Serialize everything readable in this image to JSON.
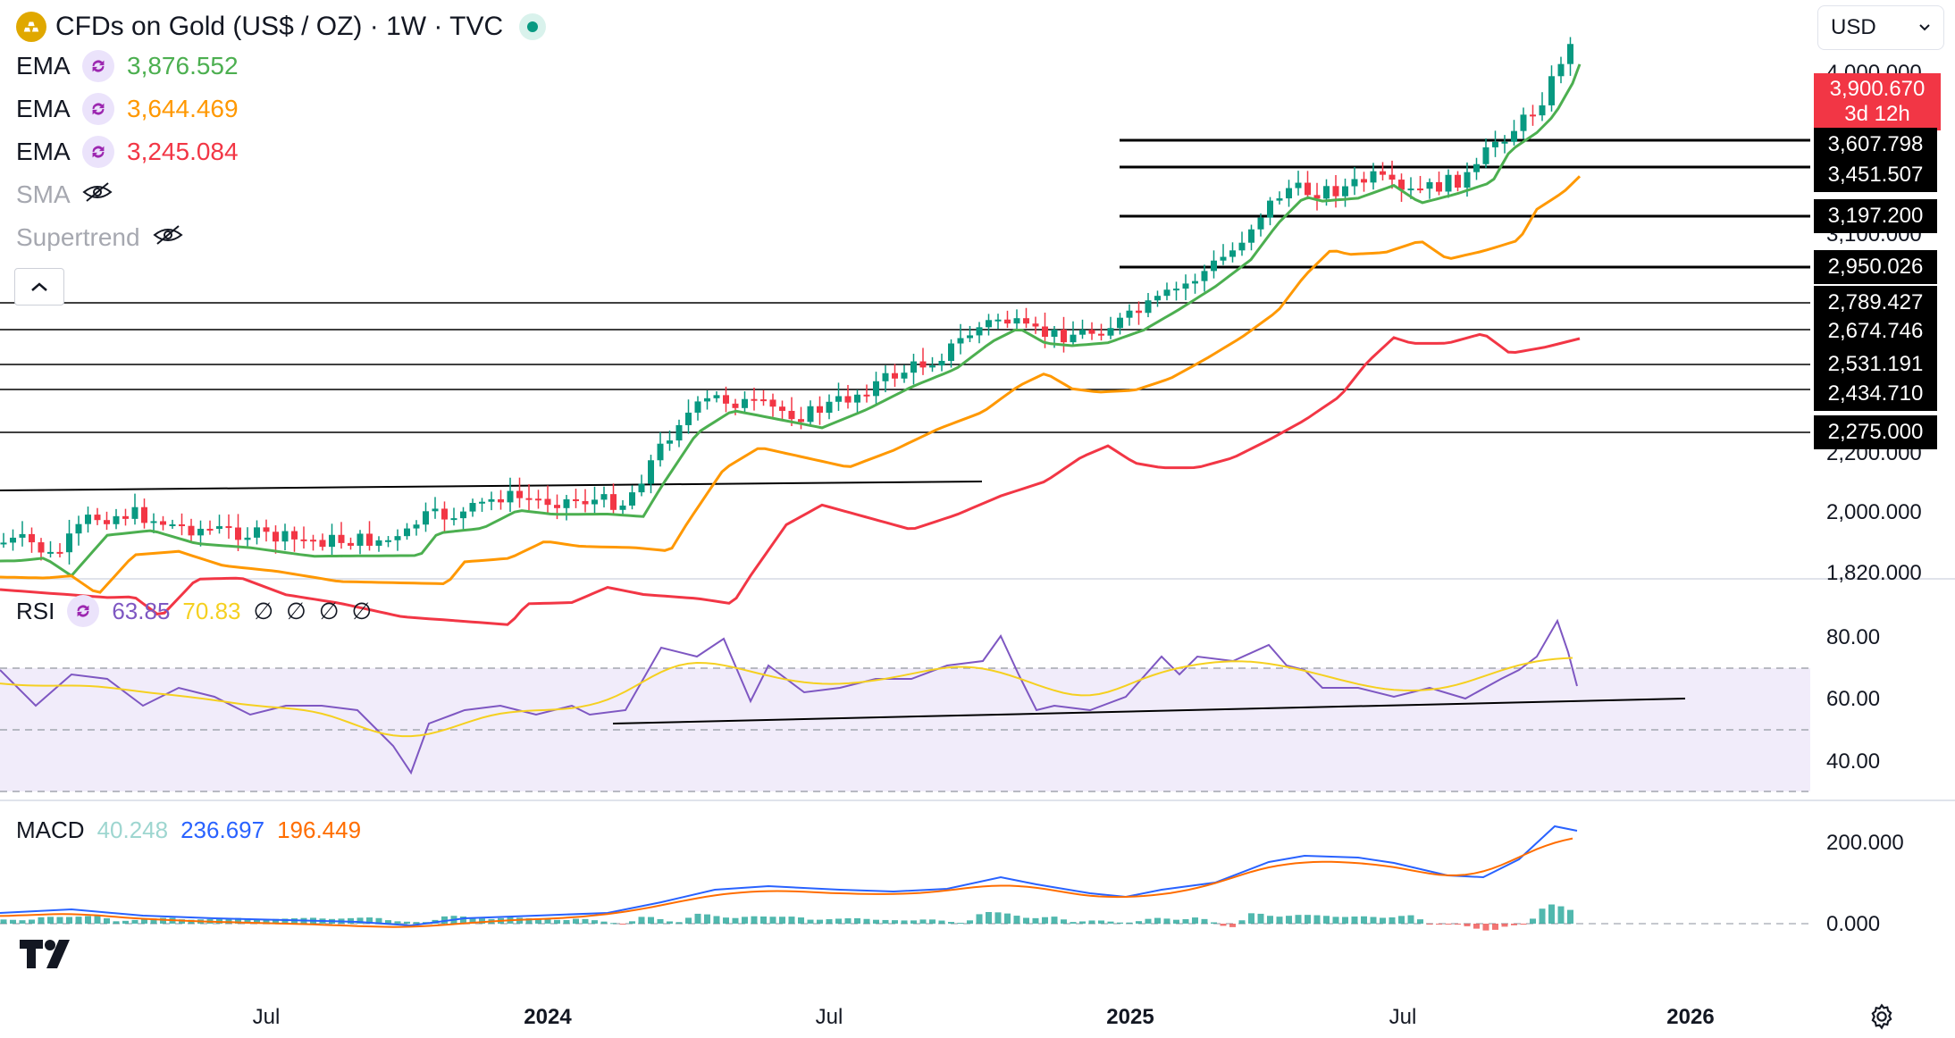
{
  "header": {
    "symbol_title": "CFDs on Gold (US$ / OZ) · 1W · TVC",
    "currency": "USD"
  },
  "indicators": [
    {
      "name": "EMA",
      "value": "3,876.552",
      "color": "#4caf50",
      "visible": true
    },
    {
      "name": "EMA",
      "value": "3,644.469",
      "color": "#ff9800",
      "visible": true
    },
    {
      "name": "EMA",
      "value": "3,245.084",
      "color": "#f23645",
      "visible": true
    },
    {
      "name": "SMA",
      "value": "",
      "color": "#a6a8b0",
      "visible": false
    },
    {
      "name": "Supertrend",
      "value": "",
      "color": "#a6a8b0",
      "visible": false
    }
  ],
  "price_axis": {
    "ticks": [
      "4,000.000",
      "3,100.000",
      "2,200.000",
      "2,000.000",
      "1,820.000"
    ],
    "current_price": "3,900.670",
    "countdown": "3d 12h",
    "level_labels": [
      "3,607.798",
      "3,451.507",
      "3,197.200",
      "2,950.026",
      "2,789.427",
      "2,674.746",
      "2,531.191",
      "2,434.710",
      "2,275.000"
    ]
  },
  "rsi_pane": {
    "label": "RSI",
    "value": "63.85",
    "ma_value": "70.83",
    "empty_values": [
      "∅",
      "∅",
      "∅",
      "∅"
    ],
    "ticks": [
      "80.00",
      "60.00",
      "40.00"
    ]
  },
  "macd_pane": {
    "label": "MACD",
    "histogram": "40.248",
    "macd": "236.697",
    "signal": "196.449",
    "ticks": [
      "200.000",
      "0.000"
    ]
  },
  "time_axis": {
    "labels": [
      "Jul",
      "2024",
      "Jul",
      "2025",
      "Jul",
      "2026"
    ]
  },
  "colors": {
    "up": "#089981",
    "down": "#f23645",
    "ema_fast": "#4caf50",
    "ema_mid": "#ff9800",
    "ema_slow": "#f23645",
    "rsi": "#7e57c2",
    "rsi_ma": "#f5d020",
    "macd": "#2962ff",
    "signal": "#ff6d00"
  },
  "icons": {
    "symbol": "gold-bars-icon",
    "live": "live-status-icon",
    "indicator": "refresh-icon",
    "hidden": "eye-off-icon",
    "collapse": "chevron-up-icon",
    "logo": "tradingview-logo-icon",
    "settings": "gear-icon"
  }
}
